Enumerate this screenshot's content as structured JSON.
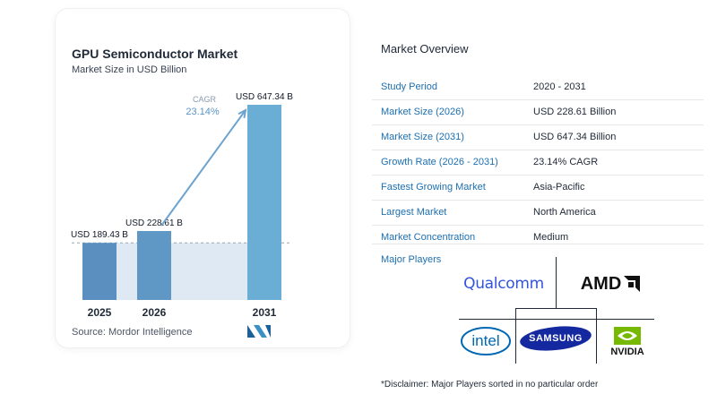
{
  "chart": {
    "title": "GPU Semiconductor Market",
    "subtitle": "Market Size in USD Billion",
    "source": "Source: Mordor Intelligence",
    "cagr_label": "CAGR",
    "cagr_value": "23.14%"
  },
  "chart_data": {
    "type": "bar",
    "categories": [
      "2025",
      "2026",
      "2031"
    ],
    "values": [
      189.43,
      228.61,
      647.34
    ],
    "data_labels": [
      "USD 189.43 B",
      "USD 228.61 B",
      "USD 647.34 B"
    ],
    "title": "GPU Semiconductor Market",
    "subtitle": "Market Size in USD Billion",
    "xlabel": "",
    "ylabel": "",
    "ylim": [
      0,
      700
    ],
    "grid": false,
    "annotations": [
      "CAGR 23.14%"
    ],
    "colors": {
      "bar_2025": "#5b8fc0",
      "bar_2026": "#5f97c5",
      "bar_2031": "#6aaed6",
      "band": "#dfe9f3",
      "arrow": "#6ca3cf"
    }
  },
  "overview": {
    "title": "Market Overview",
    "rows": [
      {
        "label": "Study Period",
        "value": "2020 - 2031"
      },
      {
        "label": "Market Size (2026)",
        "value": "USD 228.61 Billion"
      },
      {
        "label": "Market Size (2031)",
        "value": "USD 647.34 Billion"
      },
      {
        "label": "Growth Rate (2026 - 2031)",
        "value": "23.14% CAGR"
      },
      {
        "label": "Fastest Growing Market",
        "value": "Asia-Pacific"
      },
      {
        "label": "Largest Market",
        "value": "North America"
      },
      {
        "label": "Market Concentration",
        "value": "Medium"
      }
    ]
  },
  "players": {
    "label": "Major Players",
    "logos": [
      {
        "name": "Qualcomm",
        "text": "Qualcomm",
        "color": "#3253dc"
      },
      {
        "name": "AMD",
        "text": "AMD",
        "color": "#111111"
      },
      {
        "name": "Intel",
        "text": "intel",
        "color": "#0068b5"
      },
      {
        "name": "Samsung",
        "text": "SAMSUNG",
        "color": "#1428a0"
      },
      {
        "name": "NVIDIA",
        "text": "NVIDIA",
        "color": "#76b900"
      }
    ]
  },
  "disclaimer": "*Disclaimer: Major Players sorted in no particular order"
}
